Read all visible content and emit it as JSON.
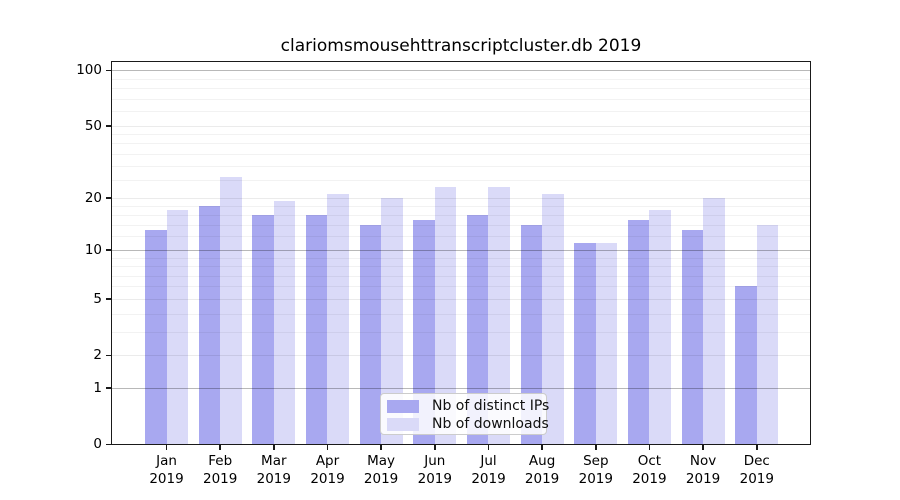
{
  "chart_data": {
    "type": "bar",
    "title": "clariomsmousehttranscriptcluster.db 2019",
    "months": [
      "Jan",
      "Feb",
      "Mar",
      "Apr",
      "May",
      "Jun",
      "Jul",
      "Aug",
      "Sep",
      "Oct",
      "Nov",
      "Dec"
    ],
    "year": "2019",
    "series": [
      {
        "name": "Nb of distinct IPs",
        "color": "#a8a8f0",
        "values": [
          13,
          18,
          16,
          16,
          14,
          15,
          16,
          14,
          11,
          15,
          13,
          6
        ]
      },
      {
        "name": "Nb of downloads",
        "color": "#dadaf8",
        "values": [
          17,
          26,
          19,
          21,
          20,
          23,
          23,
          21,
          11,
          17,
          20,
          14
        ]
      }
    ],
    "yscale": "log10(value+1)",
    "ylim": [
      0,
      110
    ],
    "yticks": [
      0,
      1,
      2,
      5,
      10,
      20,
      50,
      100
    ],
    "gridlines": {
      "dark": [
        1,
        10,
        100
      ],
      "light": [
        2,
        5,
        20,
        50
      ],
      "minor": [
        3,
        4,
        6,
        7,
        8,
        9,
        12,
        14,
        16,
        18,
        25,
        30,
        35,
        40,
        45,
        60,
        70,
        80,
        90
      ]
    },
    "grid": "horizontal",
    "legend_position": "bottom-center-inside"
  },
  "colors": {
    "axis": "#1a1a1a",
    "bar_distinct_ips": "#a8a8f0",
    "bar_downloads": "#dadaf8",
    "background": "#ffffff"
  }
}
